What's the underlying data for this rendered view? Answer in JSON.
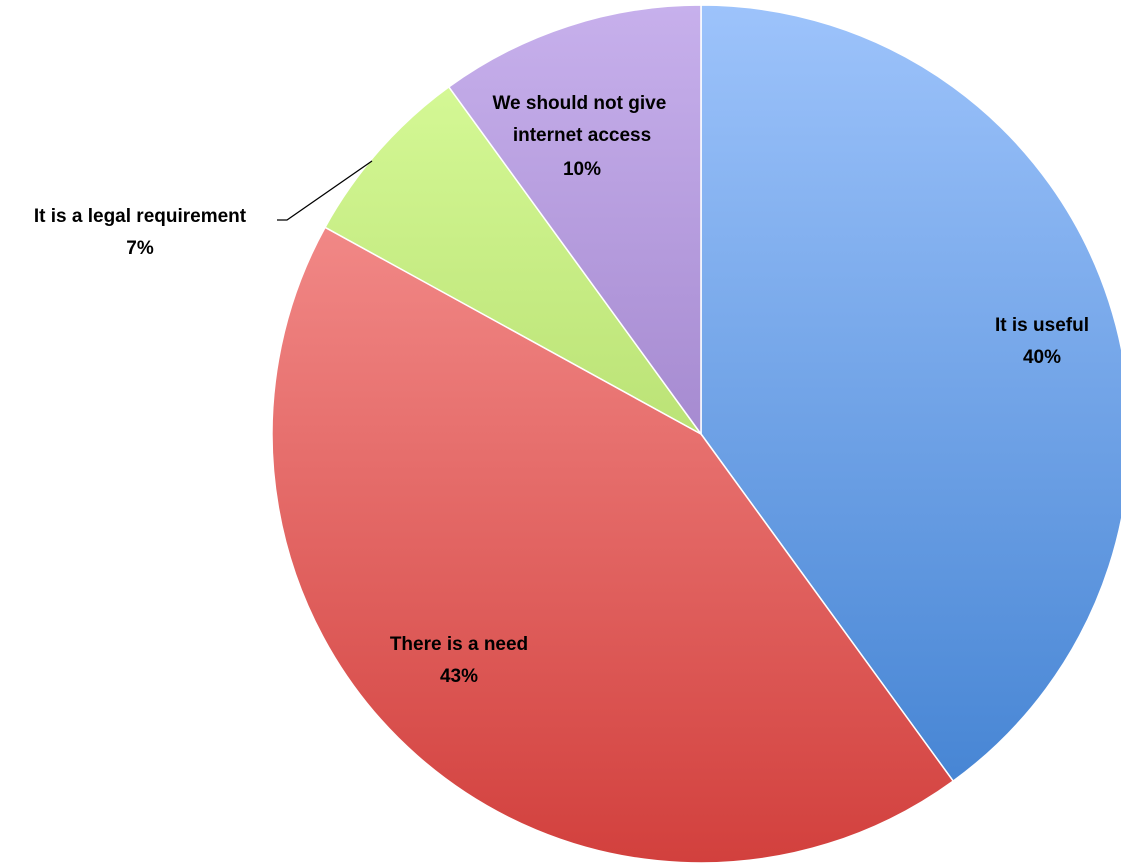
{
  "chart_data": {
    "type": "pie",
    "slices": [
      {
        "label": "It is useful",
        "value": 40,
        "value_label": "40%",
        "color_light": "#9dc3fb",
        "color_dark": "#3e7fd0"
      },
      {
        "label": "There is a need",
        "value": 43,
        "value_label": "43%",
        "color_light": "#fca1a0",
        "color_dark": "#d2403d"
      },
      {
        "label": "It is a legal requirement",
        "value": 7,
        "value_label": "7%",
        "color_light": "#dafd9c",
        "color_dark": "#9cc850"
      },
      {
        "label": "We should not give internet access",
        "value": 10,
        "value_label": "10%",
        "color_light": "#c7b0ec",
        "color_dark": "#8565b5"
      }
    ],
    "start_angle": "12 o'clock",
    "direction": "clockwise",
    "legend": "none"
  }
}
